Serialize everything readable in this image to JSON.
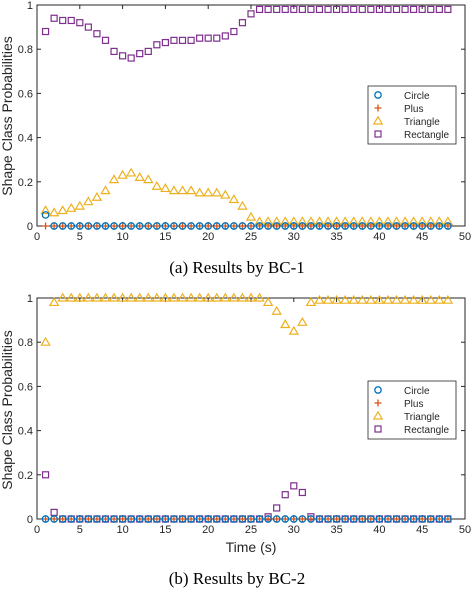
{
  "chart_data": [
    {
      "type": "scatter",
      "caption": "(a) Results by BC-1",
      "xlabel": "",
      "ylabel": "Shape Class Probabilities",
      "xlim": [
        0,
        50
      ],
      "ylim": [
        0,
        1
      ],
      "xticks": [
        "0",
        "5",
        "10",
        "15",
        "20",
        "25",
        "30",
        "35",
        "40",
        "45",
        "50"
      ],
      "yticks": [
        "0",
        "0.2",
        "0.4",
        "0.6",
        "0.8",
        "1"
      ],
      "legend_position": "right",
      "x": [
        1,
        2,
        3,
        4,
        5,
        6,
        7,
        8,
        9,
        10,
        11,
        12,
        13,
        14,
        15,
        16,
        17,
        18,
        19,
        20,
        21,
        22,
        23,
        24,
        25,
        26,
        27,
        28,
        29,
        30,
        31,
        32,
        33,
        34,
        35,
        36,
        37,
        38,
        39,
        40,
        41,
        42,
        43,
        44,
        45,
        46,
        47,
        48
      ],
      "series": [
        {
          "name": "Circle",
          "marker": "circle",
          "color": "#0072BD",
          "values": [
            0.05,
            0,
            0,
            0,
            0,
            0,
            0,
            0,
            0,
            0,
            0,
            0,
            0,
            0,
            0,
            0,
            0,
            0,
            0,
            0,
            0,
            0,
            0,
            0,
            0,
            0,
            0,
            0,
            0,
            0,
            0,
            0,
            0,
            0,
            0,
            0,
            0,
            0,
            0,
            0,
            0,
            0,
            0,
            0,
            0,
            0,
            0,
            0
          ]
        },
        {
          "name": "Plus",
          "marker": "plus",
          "color": "#D95319",
          "values": [
            0,
            0,
            0,
            0,
            0,
            0,
            0,
            0,
            0,
            0,
            0,
            0,
            0,
            0,
            0,
            0,
            0,
            0,
            0,
            0,
            0,
            0,
            0,
            0,
            0,
            0,
            0,
            0,
            0,
            0,
            0,
            0,
            0,
            0,
            0,
            0,
            0,
            0,
            0,
            0,
            0,
            0,
            0,
            0,
            0,
            0,
            0,
            0
          ]
        },
        {
          "name": "Triangle",
          "marker": "triangle",
          "color": "#EDB120",
          "values": [
            0.07,
            0.06,
            0.07,
            0.08,
            0.09,
            0.11,
            0.13,
            0.16,
            0.21,
            0.23,
            0.24,
            0.22,
            0.21,
            0.18,
            0.17,
            0.16,
            0.16,
            0.16,
            0.15,
            0.15,
            0.15,
            0.14,
            0.12,
            0.09,
            0.04,
            0.02,
            0.02,
            0.02,
            0.02,
            0.02,
            0.02,
            0.02,
            0.02,
            0.02,
            0.02,
            0.02,
            0.02,
            0.02,
            0.02,
            0.02,
            0.02,
            0.02,
            0.02,
            0.02,
            0.02,
            0.02,
            0.02,
            0.02
          ]
        },
        {
          "name": "Rectangle",
          "marker": "square",
          "color": "#7E2F8E",
          "values": [
            0.88,
            0.94,
            0.93,
            0.93,
            0.92,
            0.9,
            0.87,
            0.84,
            0.79,
            0.77,
            0.76,
            0.78,
            0.79,
            0.82,
            0.83,
            0.84,
            0.84,
            0.84,
            0.85,
            0.85,
            0.85,
            0.86,
            0.88,
            0.92,
            0.96,
            0.98,
            0.98,
            0.98,
            0.98,
            0.98,
            0.98,
            0.98,
            0.98,
            0.98,
            0.98,
            0.98,
            0.98,
            0.98,
            0.98,
            0.98,
            0.98,
            0.98,
            0.98,
            0.98,
            0.98,
            0.98,
            0.98,
            0.98
          ]
        }
      ]
    },
    {
      "type": "scatter",
      "caption": "(b) Results by BC-2",
      "xlabel": "Time (s)",
      "ylabel": "Shape Class Probabilities",
      "xlim": [
        0,
        50
      ],
      "ylim": [
        0,
        1
      ],
      "xticks": [
        "0",
        "5",
        "10",
        "15",
        "20",
        "25",
        "30",
        "35",
        "40",
        "45",
        "50"
      ],
      "yticks": [
        "0",
        "0.2",
        "0.4",
        "0.6",
        "0.8",
        "1"
      ],
      "legend_position": "right",
      "x": [
        1,
        2,
        3,
        4,
        5,
        6,
        7,
        8,
        9,
        10,
        11,
        12,
        13,
        14,
        15,
        16,
        17,
        18,
        19,
        20,
        21,
        22,
        23,
        24,
        25,
        26,
        27,
        28,
        29,
        30,
        31,
        32,
        33,
        34,
        35,
        36,
        37,
        38,
        39,
        40,
        41,
        42,
        43,
        44,
        45,
        46,
        47,
        48
      ],
      "series": [
        {
          "name": "Circle",
          "marker": "circle",
          "color": "#0072BD",
          "values": [
            0,
            0,
            0,
            0,
            0,
            0,
            0,
            0,
            0,
            0,
            0,
            0,
            0,
            0,
            0,
            0,
            0,
            0,
            0,
            0,
            0,
            0,
            0,
            0,
            0,
            0,
            0,
            0,
            0,
            0,
            0,
            0,
            0,
            0,
            0,
            0,
            0,
            0,
            0,
            0,
            0,
            0,
            0,
            0,
            0,
            0,
            0,
            0
          ]
        },
        {
          "name": "Plus",
          "marker": "plus",
          "color": "#D95319",
          "values": [
            0,
            0,
            0,
            0,
            0,
            0,
            0,
            0,
            0,
            0,
            0,
            0,
            0,
            0,
            0,
            0,
            0,
            0,
            0,
            0,
            0,
            0,
            0,
            0,
            0,
            0,
            0,
            0,
            0,
            0,
            0,
            0,
            0,
            0,
            0,
            0,
            0,
            0,
            0,
            0,
            0,
            0,
            0,
            0,
            0,
            0,
            0,
            0
          ]
        },
        {
          "name": "Triangle",
          "marker": "triangle",
          "color": "#EDB120",
          "values": [
            0.8,
            0.98,
            1,
            1,
            1,
            1,
            1,
            1,
            1,
            1,
            1,
            1,
            1,
            1,
            1,
            1,
            1,
            1,
            1,
            1,
            1,
            1,
            1,
            1,
            1,
            1,
            0.98,
            0.94,
            0.88,
            0.85,
            0.89,
            0.98,
            0.99,
            0.99,
            0.99,
            0.99,
            0.99,
            0.99,
            0.99,
            0.99,
            0.99,
            0.99,
            0.99,
            0.99,
            0.99,
            0.99,
            0.99,
            0.99
          ]
        },
        {
          "name": "Rectangle",
          "marker": "square",
          "color": "#7E2F8E",
          "values": [
            0.2,
            0.03,
            0,
            0,
            0,
            0,
            0,
            0,
            0,
            0,
            0,
            0,
            0,
            0,
            0,
            0,
            0,
            0,
            0,
            0,
            0,
            0,
            0,
            0,
            0,
            0,
            0.01,
            0.05,
            0.11,
            0.15,
            0.12,
            0.01,
            0,
            0,
            0,
            0,
            0,
            0,
            0,
            0,
            0,
            0,
            0,
            0,
            0,
            0,
            0,
            0
          ]
        }
      ]
    }
  ]
}
